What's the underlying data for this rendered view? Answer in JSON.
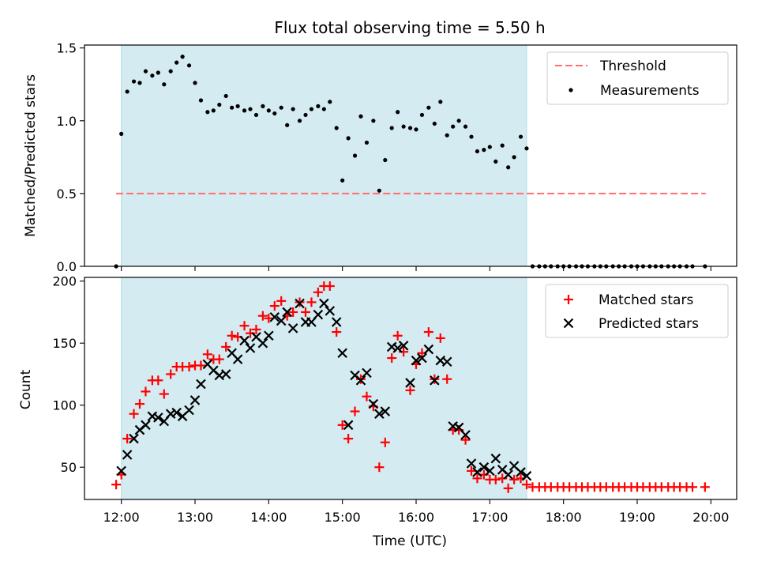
{
  "figure_title": "Flux total observing time = 5.50 h",
  "colors": {
    "shade": "#d4ebf1",
    "threshold": "#ff6f6f",
    "matched": "#ff0000",
    "predicted": "#000000",
    "measurement": "#000000"
  },
  "chart_data": [
    {
      "type": "scatter",
      "panel": "top",
      "title": "Flux total observing time = 5.50 h",
      "ylabel": "Matched/Predicted stars",
      "xlabel": "",
      "x_unit": "hours UTC",
      "xlim": [
        11.5,
        20.35
      ],
      "ylim": [
        0,
        1.52
      ],
      "yticks": [
        0.0,
        0.5,
        1.0,
        1.5
      ],
      "yticklabels": [
        "0.0",
        "0.5",
        "1.0",
        "1.5"
      ],
      "observing_window": [
        12.0,
        17.5
      ],
      "legend_position": "top-right",
      "threshold": {
        "name": "Threshold",
        "y": 0.5,
        "x_range": [
          11.93,
          19.93
        ],
        "style": "dashed"
      },
      "series": [
        {
          "name": "Measurements",
          "marker": "dot",
          "points": [
            [
              11.93,
              0.0
            ],
            [
              12.0,
              0.91
            ],
            [
              12.08,
              1.2
            ],
            [
              12.17,
              1.27
            ],
            [
              12.25,
              1.26
            ],
            [
              12.33,
              1.34
            ],
            [
              12.42,
              1.31
            ],
            [
              12.5,
              1.33
            ],
            [
              12.58,
              1.25
            ],
            [
              12.67,
              1.34
            ],
            [
              12.75,
              1.4
            ],
            [
              12.83,
              1.44
            ],
            [
              12.92,
              1.38
            ],
            [
              13.0,
              1.26
            ],
            [
              13.08,
              1.14
            ],
            [
              13.17,
              1.06
            ],
            [
              13.25,
              1.07
            ],
            [
              13.33,
              1.11
            ],
            [
              13.42,
              1.17
            ],
            [
              13.5,
              1.09
            ],
            [
              13.58,
              1.1
            ],
            [
              13.67,
              1.07
            ],
            [
              13.75,
              1.08
            ],
            [
              13.83,
              1.04
            ],
            [
              13.92,
              1.1
            ],
            [
              14.0,
              1.07
            ],
            [
              14.08,
              1.05
            ],
            [
              14.17,
              1.09
            ],
            [
              14.25,
              0.97
            ],
            [
              14.33,
              1.08
            ],
            [
              14.42,
              1.0
            ],
            [
              14.5,
              1.04
            ],
            [
              14.58,
              1.08
            ],
            [
              14.67,
              1.1
            ],
            [
              14.75,
              1.08
            ],
            [
              14.83,
              1.13
            ],
            [
              14.92,
              0.95
            ],
            [
              15.0,
              0.59
            ],
            [
              15.08,
              0.88
            ],
            [
              15.17,
              0.76
            ],
            [
              15.25,
              1.03
            ],
            [
              15.33,
              0.85
            ],
            [
              15.42,
              1.0
            ],
            [
              15.5,
              0.52
            ],
            [
              15.58,
              0.73
            ],
            [
              15.67,
              0.95
            ],
            [
              15.75,
              1.06
            ],
            [
              15.83,
              0.96
            ],
            [
              15.92,
              0.95
            ],
            [
              16.0,
              0.94
            ],
            [
              16.08,
              1.04
            ],
            [
              16.17,
              1.09
            ],
            [
              16.25,
              0.98
            ],
            [
              16.33,
              1.13
            ],
            [
              16.42,
              0.9
            ],
            [
              16.5,
              0.96
            ],
            [
              16.58,
              1.0
            ],
            [
              16.67,
              0.96
            ],
            [
              16.75,
              0.89
            ],
            [
              16.83,
              0.79
            ],
            [
              16.92,
              0.8
            ],
            [
              17.0,
              0.82
            ],
            [
              17.08,
              0.72
            ],
            [
              17.17,
              0.83
            ],
            [
              17.25,
              0.68
            ],
            [
              17.33,
              0.75
            ],
            [
              17.42,
              0.89
            ],
            [
              17.5,
              0.81
            ],
            [
              17.58,
              0.0
            ],
            [
              17.67,
              0.0
            ],
            [
              17.75,
              0.0
            ],
            [
              17.83,
              0.0
            ],
            [
              17.92,
              0.0
            ],
            [
              18.0,
              0.0
            ],
            [
              18.08,
              0.0
            ],
            [
              18.17,
              0.0
            ],
            [
              18.25,
              0.0
            ],
            [
              18.33,
              0.0
            ],
            [
              18.42,
              0.0
            ],
            [
              18.5,
              0.0
            ],
            [
              18.58,
              0.0
            ],
            [
              18.67,
              0.0
            ],
            [
              18.75,
              0.0
            ],
            [
              18.83,
              0.0
            ],
            [
              18.92,
              0.0
            ],
            [
              19.0,
              0.0
            ],
            [
              19.08,
              0.0
            ],
            [
              19.17,
              0.0
            ],
            [
              19.25,
              0.0
            ],
            [
              19.33,
              0.0
            ],
            [
              19.42,
              0.0
            ],
            [
              19.5,
              0.0
            ],
            [
              19.58,
              0.0
            ],
            [
              19.67,
              0.0
            ],
            [
              19.75,
              0.0
            ],
            [
              19.92,
              0.0
            ]
          ]
        }
      ]
    },
    {
      "type": "scatter",
      "panel": "bottom",
      "title": "",
      "ylabel": "Count",
      "xlabel": "Time (UTC)",
      "x_unit": "hours UTC",
      "xlim": [
        11.5,
        20.35
      ],
      "ylim": [
        24,
        203
      ],
      "xticks": [
        12,
        13,
        14,
        15,
        16,
        17,
        18,
        19,
        20
      ],
      "xticklabels": [
        "12:00",
        "13:00",
        "14:00",
        "15:00",
        "16:00",
        "17:00",
        "18:00",
        "19:00",
        "20:00"
      ],
      "yticks": [
        50,
        100,
        150,
        200
      ],
      "yticklabels": [
        "50",
        "100",
        "150",
        "200"
      ],
      "observing_window": [
        12.0,
        17.5
      ],
      "legend_position": "top-right",
      "series": [
        {
          "name": "Matched stars",
          "marker": "plus",
          "points": [
            [
              11.93,
              36
            ],
            [
              12.0,
              44
            ],
            [
              12.08,
              73
            ],
            [
              12.17,
              93
            ],
            [
              12.25,
              101
            ],
            [
              12.33,
              111
            ],
            [
              12.42,
              120
            ],
            [
              12.5,
              120
            ],
            [
              12.58,
              109
            ],
            [
              12.67,
              125
            ],
            [
              12.75,
              131
            ],
            [
              12.83,
              131
            ],
            [
              12.92,
              131
            ],
            [
              13.0,
              132
            ],
            [
              13.08,
              132
            ],
            [
              13.17,
              141
            ],
            [
              13.25,
              137
            ],
            [
              13.33,
              137
            ],
            [
              13.42,
              147
            ],
            [
              13.5,
              156
            ],
            [
              13.58,
              155
            ],
            [
              13.67,
              164
            ],
            [
              13.75,
              158
            ],
            [
              13.83,
              161
            ],
            [
              13.92,
              172
            ],
            [
              14.0,
              170
            ],
            [
              14.08,
              180
            ],
            [
              14.17,
              184
            ],
            [
              14.25,
              172
            ],
            [
              14.33,
              175
            ],
            [
              14.42,
              183
            ],
            [
              14.5,
              175
            ],
            [
              14.58,
              183
            ],
            [
              14.67,
              191
            ],
            [
              14.75,
              196
            ],
            [
              14.83,
              196
            ],
            [
              14.92,
              159
            ],
            [
              15.0,
              84
            ],
            [
              15.08,
              73
            ],
            [
              15.17,
              95
            ],
            [
              15.25,
              121
            ],
            [
              15.33,
              107
            ],
            [
              15.42,
              99
            ],
            [
              15.5,
              50
            ],
            [
              15.58,
              70
            ],
            [
              15.67,
              138
            ],
            [
              15.75,
              156
            ],
            [
              15.83,
              143
            ],
            [
              15.92,
              112
            ],
            [
              16.0,
              133
            ],
            [
              16.08,
              142
            ],
            [
              16.17,
              159
            ],
            [
              16.25,
              121
            ],
            [
              16.33,
              154
            ],
            [
              16.42,
              121
            ],
            [
              16.5,
              80
            ],
            [
              16.58,
              80
            ],
            [
              16.67,
              72
            ],
            [
              16.75,
              47
            ],
            [
              16.83,
              41
            ],
            [
              16.92,
              44
            ],
            [
              17.0,
              40
            ],
            [
              17.08,
              40
            ],
            [
              17.17,
              41
            ],
            [
              17.25,
              33
            ],
            [
              17.33,
              40
            ],
            [
              17.42,
              41
            ],
            [
              17.5,
              36
            ],
            [
              17.58,
              34
            ],
            [
              17.67,
              34
            ],
            [
              17.75,
              34
            ],
            [
              17.83,
              34
            ],
            [
              17.92,
              34
            ],
            [
              18.0,
              34
            ],
            [
              18.08,
              34
            ],
            [
              18.17,
              34
            ],
            [
              18.25,
              34
            ],
            [
              18.33,
              34
            ],
            [
              18.42,
              34
            ],
            [
              18.5,
              34
            ],
            [
              18.58,
              34
            ],
            [
              18.67,
              34
            ],
            [
              18.75,
              34
            ],
            [
              18.83,
              34
            ],
            [
              18.92,
              34
            ],
            [
              19.0,
              34
            ],
            [
              19.08,
              34
            ],
            [
              19.17,
              34
            ],
            [
              19.25,
              34
            ],
            [
              19.33,
              34
            ],
            [
              19.42,
              34
            ],
            [
              19.5,
              34
            ],
            [
              19.58,
              34
            ],
            [
              19.67,
              34
            ],
            [
              19.75,
              34
            ],
            [
              19.92,
              34
            ]
          ]
        },
        {
          "name": "Predicted stars",
          "marker": "x",
          "points": [
            [
              12.0,
              47
            ],
            [
              12.08,
              60
            ],
            [
              12.17,
              73
            ],
            [
              12.25,
              80
            ],
            [
              12.33,
              84
            ],
            [
              12.42,
              91
            ],
            [
              12.5,
              90
            ],
            [
              12.58,
              87
            ],
            [
              12.67,
              93
            ],
            [
              12.75,
              94
            ],
            [
              12.83,
              91
            ],
            [
              12.92,
              96
            ],
            [
              13.0,
              104
            ],
            [
              13.08,
              117
            ],
            [
              13.17,
              133
            ],
            [
              13.25,
              128
            ],
            [
              13.33,
              124
            ],
            [
              13.42,
              125
            ],
            [
              13.5,
              142
            ],
            [
              13.58,
              137
            ],
            [
              13.67,
              152
            ],
            [
              13.75,
              146
            ],
            [
              13.83,
              155
            ],
            [
              13.92,
              150
            ],
            [
              14.0,
              156
            ],
            [
              14.08,
              171
            ],
            [
              14.17,
              168
            ],
            [
              14.25,
              175
            ],
            [
              14.33,
              162
            ],
            [
              14.42,
              182
            ],
            [
              14.5,
              167
            ],
            [
              14.58,
              167
            ],
            [
              14.67,
              173
            ],
            [
              14.75,
              182
            ],
            [
              14.83,
              176
            ],
            [
              14.92,
              167
            ],
            [
              15.0,
              142
            ],
            [
              15.08,
              84
            ],
            [
              15.17,
              124
            ],
            [
              15.25,
              120
            ],
            [
              15.33,
              126
            ],
            [
              15.42,
              101
            ],
            [
              15.5,
              93
            ],
            [
              15.58,
              95
            ],
            [
              15.67,
              147
            ],
            [
              15.75,
              146
            ],
            [
              15.83,
              148
            ],
            [
              15.92,
              118
            ],
            [
              16.0,
              136
            ],
            [
              16.08,
              138
            ],
            [
              16.17,
              145
            ],
            [
              16.25,
              120
            ],
            [
              16.33,
              136
            ],
            [
              16.42,
              135
            ],
            [
              16.5,
              83
            ],
            [
              16.58,
              82
            ],
            [
              16.67,
              76
            ],
            [
              16.75,
              53
            ],
            [
              16.83,
              46
            ],
            [
              16.92,
              50
            ],
            [
              17.0,
              47
            ],
            [
              17.08,
              57
            ],
            [
              17.17,
              48
            ],
            [
              17.25,
              44
            ],
            [
              17.33,
              51
            ],
            [
              17.42,
              46
            ],
            [
              17.5,
              43
            ]
          ]
        }
      ]
    }
  ]
}
